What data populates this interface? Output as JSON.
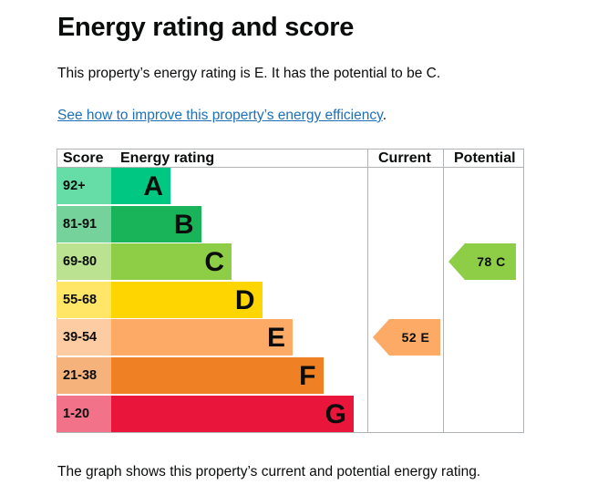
{
  "heading": "Energy rating and score",
  "intro": "This property’s energy rating is E. It has the potential to be C.",
  "link": {
    "text": "See how to improve this property’s energy efficiency",
    "suffix": "."
  },
  "table": {
    "headers": {
      "score": "Score",
      "rating": "Energy rating",
      "current": "Current",
      "potential": "Potential"
    },
    "bands": [
      {
        "score": "92+",
        "letter": "A",
        "color": "#00c781",
        "score_bg": "#66dda7"
      },
      {
        "score": "81-91",
        "letter": "B",
        "color": "#19b459",
        "score_bg": "#75d29b"
      },
      {
        "score": "69-80",
        "letter": "C",
        "color": "#8dce46",
        "score_bg": "#bbe290"
      },
      {
        "score": "55-68",
        "letter": "D",
        "color": "#ffd500",
        "score_bg": "#ffe666"
      },
      {
        "score": "39-54",
        "letter": "E",
        "color": "#fcaa65",
        "score_bg": "#fdcca3"
      },
      {
        "score": "21-38",
        "letter": "F",
        "color": "#ef8023",
        "score_bg": "#f5b37b"
      },
      {
        "score": "1-20",
        "letter": "G",
        "color": "#e9153b",
        "score_bg": "#f27389"
      }
    ],
    "current": {
      "value": "52 E",
      "band": "E",
      "color": "#fcaa65"
    },
    "potential": {
      "value": "78 C",
      "band": "C",
      "color": "#8dce46"
    }
  },
  "caption": "The graph shows this property’s current and potential energy rating."
}
